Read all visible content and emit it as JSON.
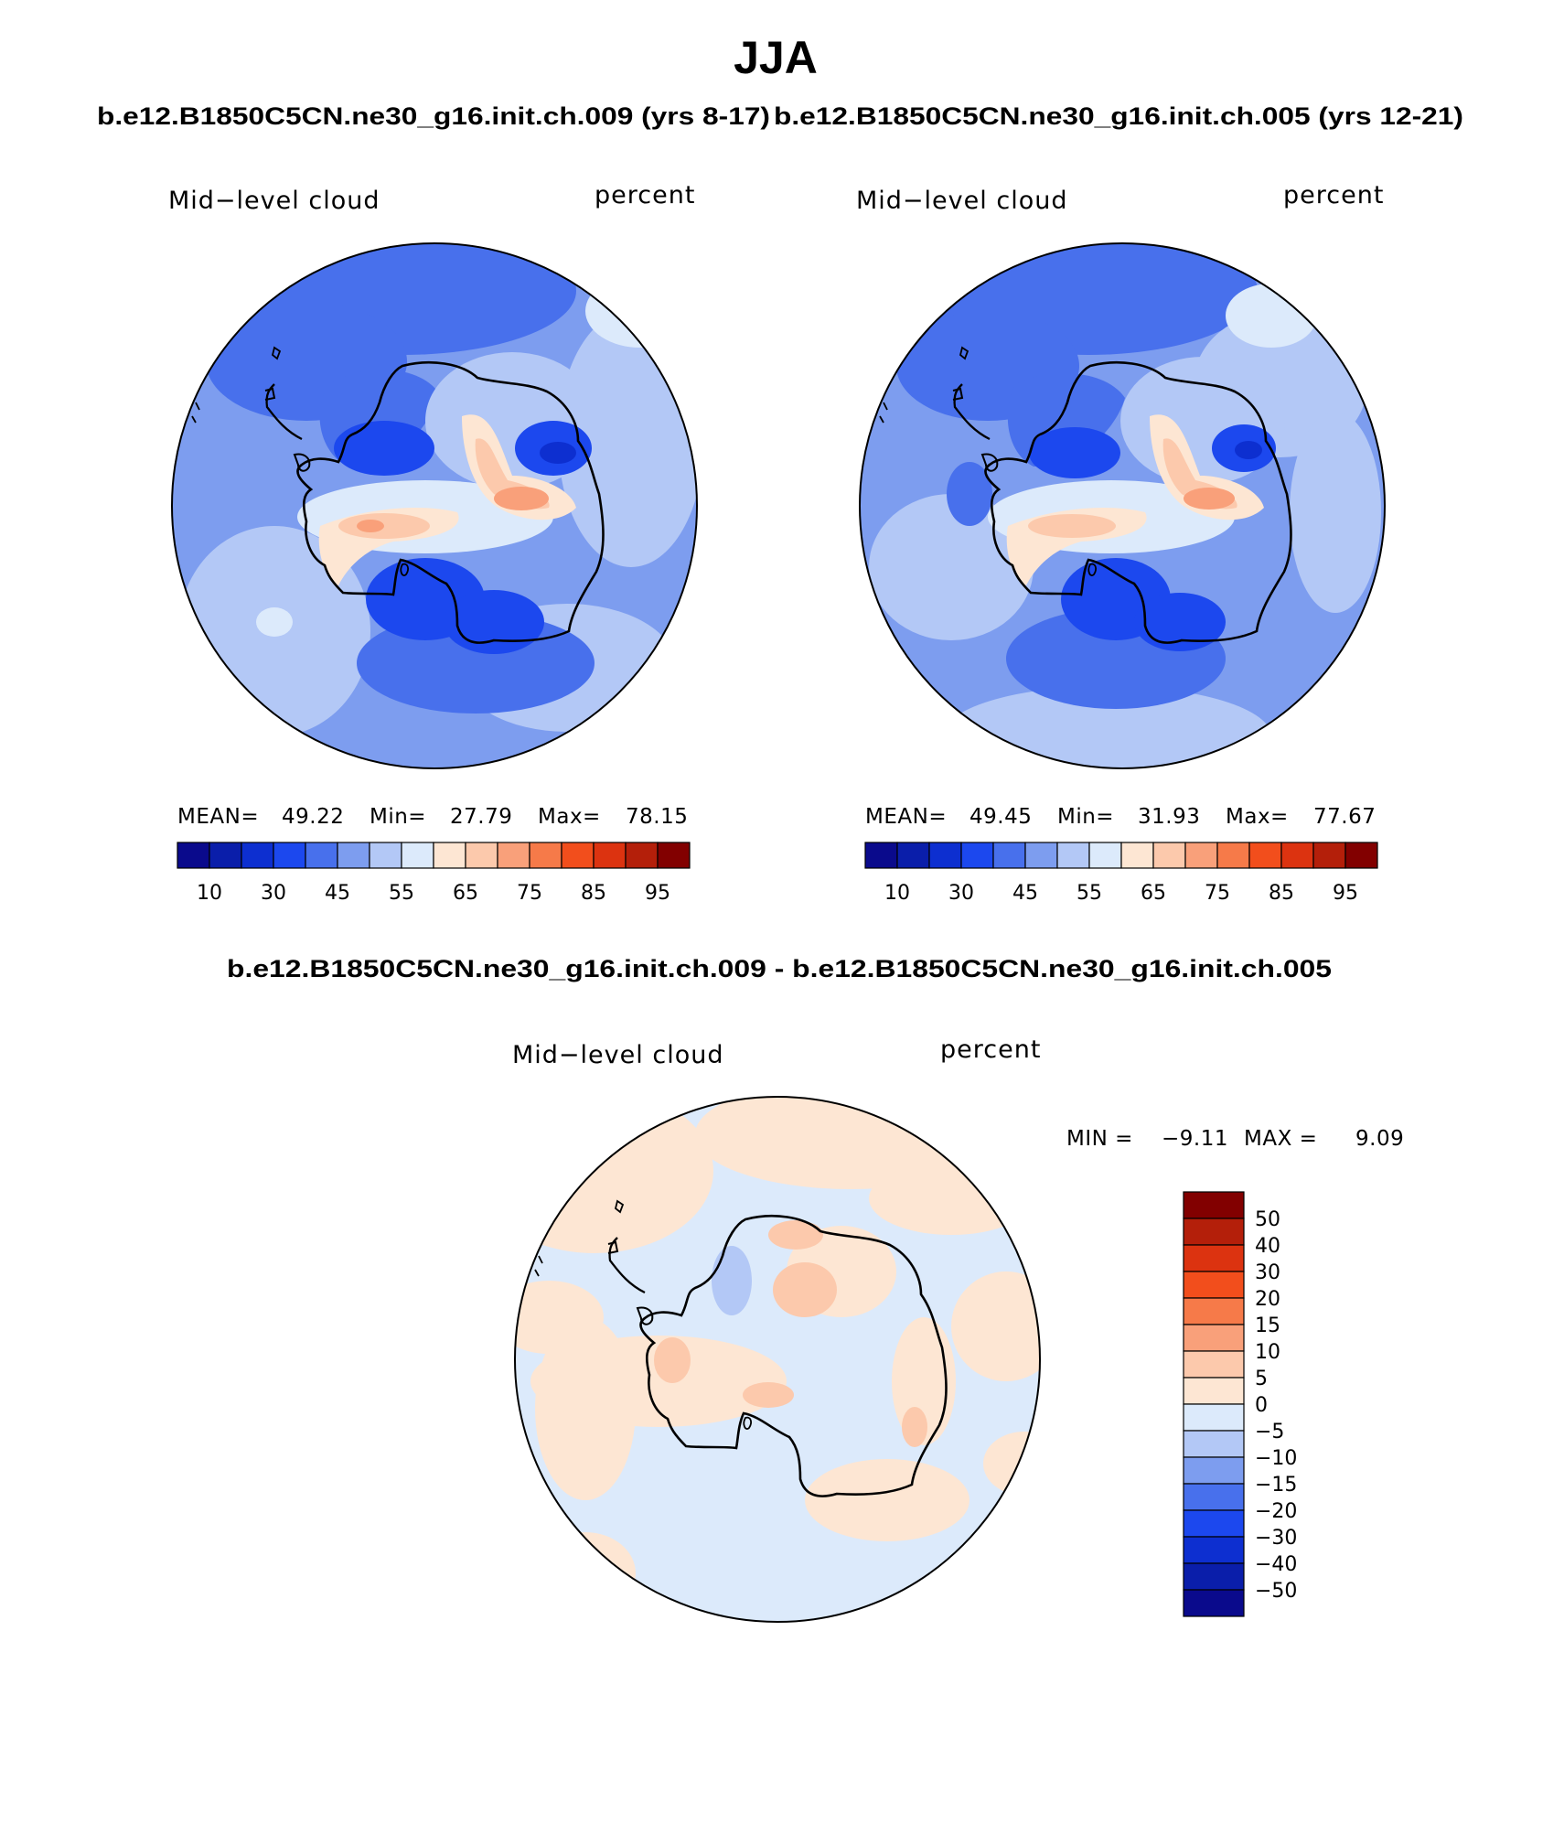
{
  "title": "JJA",
  "top_left_subtitle": "b.e12.B1850C5CN.ne30_g16.init.ch.009 (yrs 8-17)",
  "top_right_subtitle": "b.e12.B1850C5CN.ne30_g16.init.ch.005 (yrs 12-21)",
  "diff_subtitle": "b.e12.B1850C5CN.ne30_g16.init.ch.009 - b.e12.B1850C5CN.ne30_g16.init.ch.005",
  "panels": [
    {
      "variable": "Mid−level cloud",
      "units": "percent",
      "mean_label": "MEAN=",
      "mean_value": "49.22",
      "min_label": "Min=",
      "min_value": "27.79",
      "max_label": "Max=",
      "max_value": "78.15"
    },
    {
      "variable": "Mid−level cloud",
      "units": "percent",
      "mean_label": "MEAN=",
      "mean_value": "49.45",
      "min_label": "Min=",
      "min_value": "31.93",
      "max_label": "Max=",
      "max_value": "77.67"
    },
    {
      "variable": "Mid−level cloud",
      "units": "percent",
      "min_label": "MIN =",
      "min_value": "−9.11",
      "max_label": "MAX =",
      "max_value": "9.09"
    }
  ],
  "field_colorbar": {
    "colors": [
      "#0a0a8c",
      "#0a1eaa",
      "#0d2fd0",
      "#1c48ee",
      "#4870ec",
      "#7d9def",
      "#b3c8f6",
      "#dceafb",
      "#fde6d3",
      "#fcc9ac",
      "#f9a07a",
      "#f67a49",
      "#f24e1c",
      "#dc3310",
      "#b41f0a",
      "#820000"
    ],
    "tick_labels": [
      "10",
      "30",
      "45",
      "55",
      "65",
      "75",
      "85",
      "95"
    ]
  },
  "diff_colorbar": {
    "colors": [
      "#820000",
      "#b41f0a",
      "#dc3310",
      "#f24e1c",
      "#f67a49",
      "#f9a07a",
      "#fcc9ac",
      "#fde6d3",
      "#dceafb",
      "#b3c8f6",
      "#7d9def",
      "#4870ec",
      "#1c48ee",
      "#0d2fd0",
      "#0a1eaa",
      "#0a0a8c"
    ],
    "tick_labels": [
      "50",
      "40",
      "30",
      "20",
      "15",
      "10",
      "5",
      "0",
      "−5",
      "−10",
      "−15",
      "−20",
      "−30",
      "−40",
      "−50"
    ]
  }
}
